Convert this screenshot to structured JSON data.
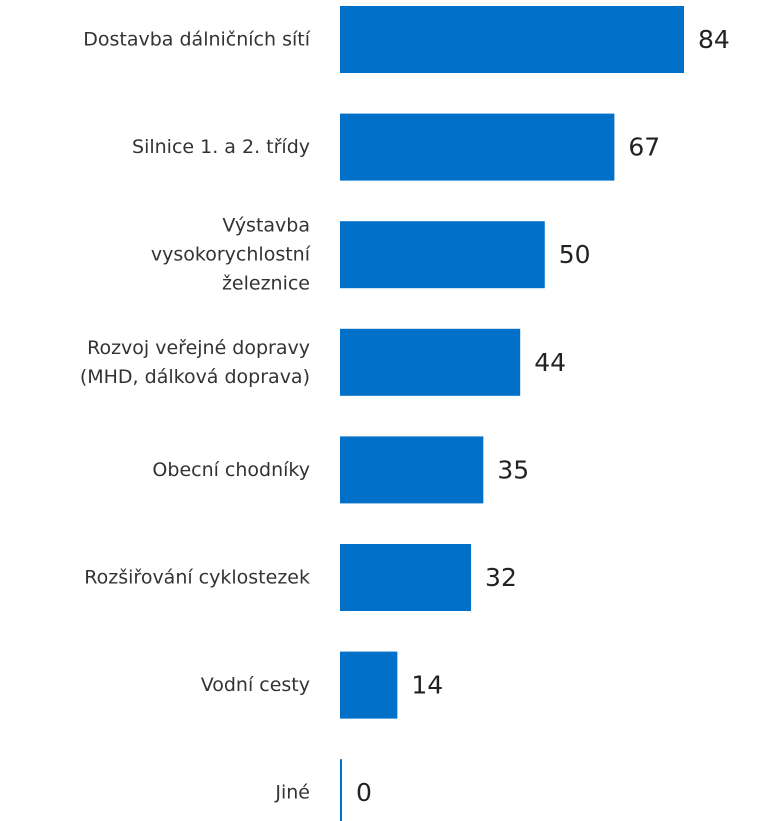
{
  "chart_data": {
    "type": "bar",
    "orientation": "horizontal",
    "categories": [
      [
        "Dostavba dálničních sítí"
      ],
      [
        "Silnice 1. a 2. třídy"
      ],
      [
        "Výstavba",
        "vysokorychlostní",
        "železnice"
      ],
      [
        "Rozvoj veřejné dopravy",
        "(MHD, dálková doprava)"
      ],
      [
        "Obecní chodníky"
      ],
      [
        "Rozšiřování cyklostezek"
      ],
      [
        "Vodní cesty"
      ],
      [
        "Jiné"
      ]
    ],
    "values": [
      84,
      67,
      50,
      44,
      35,
      32,
      14,
      0
    ],
    "title": "",
    "xlabel": "",
    "ylabel": "",
    "xlim": [
      0,
      84
    ],
    "grid": false,
    "legend": "none",
    "colors": {
      "bar": "#0070c8",
      "axis": "#0070c8",
      "text": "#333333"
    }
  }
}
